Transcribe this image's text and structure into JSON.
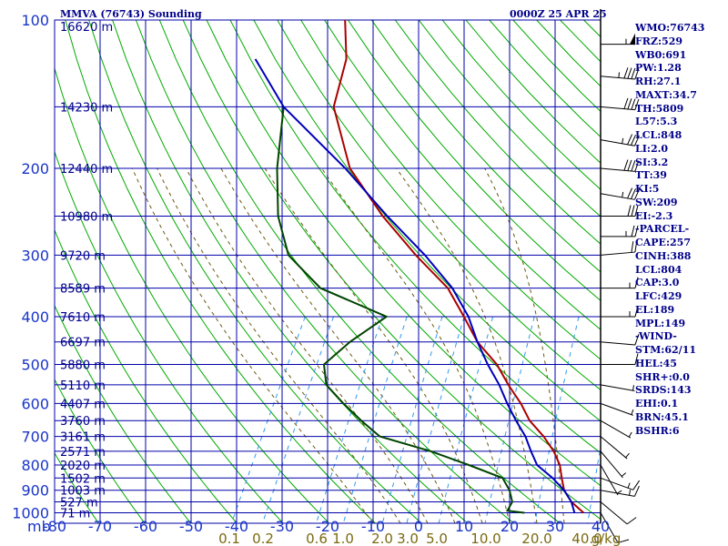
{
  "header": {
    "title": "MMVA (76743) Sounding",
    "time": "0000Z 25 APR 25"
  },
  "indices": [
    "WMO:76743",
    "FRZ:529",
    "WB0:691",
    "PW:1.28",
    "RH:27.1",
    "MAXT:34.7",
    "TH:5809",
    "L57:5.3",
    "LCL:848",
    "LI:2.0",
    "SI:3.2",
    "TT:39",
    "KI:5",
    "SW:209",
    "EI:-2.3",
    "-PARCEL-",
    "CAPE:257",
    "CINH:388",
    "LCL:804",
    "CAP:3.0",
    "LFC:429",
    "EL:189",
    "MPL:149",
    "-WIND-",
    "STM:62/11",
    "HEL:45",
    "SHR+:0.0",
    "SRDS:143",
    "EHI:0.1",
    "BRN:45.1",
    "BSHR:6"
  ],
  "chart_data": {
    "type": "line",
    "title": "MMVA (76743) Sounding",
    "xlabel": "",
    "ylabel": "mb",
    "pressure_ticks": [
      100,
      200,
      300,
      400,
      500,
      600,
      700,
      800,
      900,
      1000
    ],
    "temperature_ticks": [
      "-80",
      "-70",
      "-60",
      "-50",
      "-40",
      "-30",
      "-20",
      "-10",
      "0",
      "10",
      "20",
      "30",
      "40"
    ],
    "mixing_ratio_ticks": [
      "0.1",
      "0.2",
      "0.6",
      "1.0",
      "2.0",
      "3.0",
      "5.0",
      "10.0",
      "20.0",
      "40.0"
    ],
    "mixing_ratio_unit": "g/kg",
    "height_labels": [
      {
        "p": 103,
        "label": "16620 m"
      },
      {
        "p": 150,
        "label": "14230 m"
      },
      {
        "p": 200,
        "label": "12440 m"
      },
      {
        "p": 250,
        "label": "10980 m"
      },
      {
        "p": 300,
        "label": "9720 m"
      },
      {
        "p": 350,
        "label": "8589 m"
      },
      {
        "p": 400,
        "label": "7610 m"
      },
      {
        "p": 450,
        "label": "6697 m"
      },
      {
        "p": 500,
        "label": "5880 m"
      },
      {
        "p": 550,
        "label": "5110 m"
      },
      {
        "p": 600,
        "label": "4407 m"
      },
      {
        "p": 650,
        "label": "3760 m"
      },
      {
        "p": 700,
        "label": "3161 m"
      },
      {
        "p": 750,
        "label": "2571 m"
      },
      {
        "p": 800,
        "label": "2020 m"
      },
      {
        "p": 850,
        "label": "1502 m"
      },
      {
        "p": 900,
        "label": "1003 m"
      },
      {
        "p": 950,
        "label": "527 m"
      },
      {
        "p": 1000,
        "label": "71 m"
      }
    ],
    "series": [
      {
        "key": "temperature",
        "color": "#aa0000",
        "points": [
          [
            100,
            -77
          ],
          [
            120,
            -72
          ],
          [
            150,
            -69
          ],
          [
            200,
            -58
          ],
          [
            250,
            -45
          ],
          [
            300,
            -33
          ],
          [
            350,
            -22
          ],
          [
            400,
            -15
          ],
          [
            450,
            -9
          ],
          [
            500,
            -2
          ],
          [
            550,
            3
          ],
          [
            600,
            8
          ],
          [
            650,
            12
          ],
          [
            700,
            17
          ],
          [
            750,
            21
          ],
          [
            800,
            24
          ],
          [
            850,
            26
          ],
          [
            900,
            28
          ],
          [
            950,
            31
          ],
          [
            1000,
            35
          ]
        ]
      },
      {
        "key": "dewpoint",
        "color": "#004400",
        "points": [
          [
            150,
            -80
          ],
          [
            200,
            -74
          ],
          [
            250,
            -68
          ],
          [
            300,
            -61
          ],
          [
            350,
            -50
          ],
          [
            400,
            -32
          ],
          [
            450,
            -37
          ],
          [
            500,
            -40
          ],
          [
            550,
            -37
          ],
          [
            600,
            -31
          ],
          [
            650,
            -25
          ],
          [
            700,
            -19
          ],
          [
            750,
            -6
          ],
          [
            800,
            4
          ],
          [
            850,
            13
          ],
          [
            900,
            16
          ],
          [
            950,
            18
          ],
          [
            990,
            18
          ],
          [
            1000,
            22
          ]
        ]
      },
      {
        "key": "parcel",
        "color": "#0000bb",
        "points": [
          [
            120,
            -92
          ],
          [
            150,
            -80
          ],
          [
            200,
            -59
          ],
          [
            250,
            -44
          ],
          [
            300,
            -31
          ],
          [
            350,
            -21
          ],
          [
            400,
            -14
          ],
          [
            450,
            -9
          ],
          [
            500,
            -4
          ],
          [
            550,
            1
          ],
          [
            600,
            5
          ],
          [
            650,
            9
          ],
          [
            700,
            13
          ],
          [
            750,
            16
          ],
          [
            800,
            19
          ],
          [
            850,
            24
          ],
          [
            900,
            28
          ],
          [
            950,
            31
          ],
          [
            1000,
            33
          ]
        ]
      }
    ],
    "wind_barbs": [
      {
        "p": 112,
        "dir": 270,
        "spd": 55
      },
      {
        "p": 130,
        "dir": 265,
        "spd": 45
      },
      {
        "p": 150,
        "dir": 265,
        "spd": 40
      },
      {
        "p": 175,
        "dir": 260,
        "spd": 35
      },
      {
        "p": 200,
        "dir": 265,
        "spd": 40
      },
      {
        "p": 225,
        "dir": 260,
        "spd": 35
      },
      {
        "p": 250,
        "dir": 270,
        "spd": 30
      },
      {
        "p": 275,
        "dir": 270,
        "spd": 25
      },
      {
        "p": 300,
        "dir": 275,
        "spd": 20
      },
      {
        "p": 350,
        "dir": 270,
        "spd": 15
      },
      {
        "p": 400,
        "dir": 270,
        "spd": 15
      },
      {
        "p": 450,
        "dir": 265,
        "spd": 10
      },
      {
        "p": 500,
        "dir": 270,
        "spd": 10
      },
      {
        "p": 550,
        "dir": 260,
        "spd": 5
      },
      {
        "p": 600,
        "dir": 250,
        "spd": 5
      },
      {
        "p": 650,
        "dir": 240,
        "spd": 5
      },
      {
        "p": 700,
        "dir": 230,
        "spd": 5
      },
      {
        "p": 750,
        "dir": 220,
        "spd": 5
      },
      {
        "p": 800,
        "dir": 210,
        "spd": 5
      },
      {
        "p": 850,
        "dir": 250,
        "spd": 15
      },
      {
        "p": 900,
        "dir": 260,
        "spd": 15
      },
      {
        "p": 950,
        "dir": 230,
        "spd": 10
      },
      {
        "p": 1000,
        "dir": 210,
        "spd": 10
      }
    ],
    "colors": {
      "grid": "#0000aa",
      "axis_text": "#1a35c8",
      "mixing_text": "#7a6a10",
      "dry_adiabat": "#00aa00",
      "moist_adiabat": "#6a5a10",
      "mixing_line": "#3399ee",
      "label_text": "#00008b"
    }
  }
}
